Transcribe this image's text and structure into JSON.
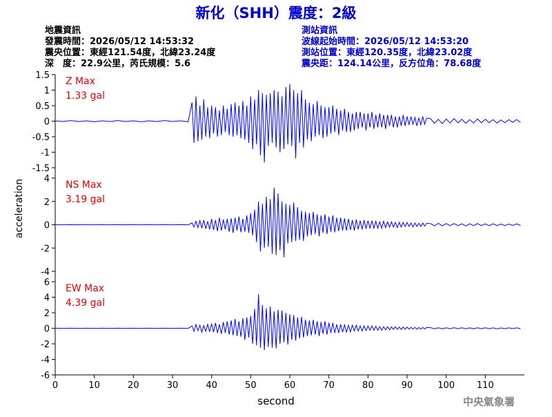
{
  "chart_data": {
    "type": "seismogram",
    "title": "新化（SHH）震度：2級",
    "info_left": [
      "地震資訊",
      "發震時間：2026/05/12 14:53:32",
      "震央位置：東經121.54度，北緯23.24度",
      "深　度：22.9公里，芮氏規模：5.6"
    ],
    "info_right": [
      "測站資訊",
      "波線起始時間：2026/05/12 14:53:20",
      "測站位置：東經120.35度，北緯23.02度",
      "震央距：124.14公里，反方位角：78.68度"
    ],
    "xlabel": "second",
    "ylabel": "acceleration",
    "footer": "中央氣象署",
    "xlim": [
      0,
      120
    ],
    "xticks": [
      0,
      10,
      20,
      30,
      40,
      50,
      60,
      70,
      80,
      90,
      100,
      110
    ],
    "x": [
      0,
      2,
      4,
      6,
      8,
      10,
      12,
      14,
      16,
      18,
      20,
      22,
      24,
      26,
      28,
      30,
      32,
      34,
      35,
      35.5,
      36,
      36.5,
      37,
      37.5,
      38,
      38.5,
      39,
      39.5,
      40,
      40.5,
      41,
      41.5,
      42,
      42.5,
      43,
      43.5,
      44,
      44.5,
      45,
      45.5,
      46,
      46.5,
      47,
      47.5,
      48,
      48.5,
      49,
      49.5,
      50,
      50.5,
      51,
      51.5,
      52,
      52.5,
      53,
      53.5,
      54,
      54.5,
      55,
      55.5,
      56,
      56.5,
      57,
      57.5,
      58,
      58.5,
      59,
      59.5,
      60,
      60.5,
      61,
      61.5,
      62,
      62.5,
      63,
      63.5,
      64,
      64.5,
      65,
      65.5,
      66,
      66.5,
      67,
      67.5,
      68,
      68.5,
      69,
      69.5,
      70,
      70.5,
      71,
      71.5,
      72,
      72.5,
      73,
      73.5,
      74,
      74.5,
      75,
      75.5,
      76,
      76.5,
      77,
      77.5,
      78,
      78.5,
      79,
      79.5,
      80,
      80.5,
      81,
      81.5,
      82,
      82.5,
      83,
      83.5,
      84,
      84.5,
      85,
      85.5,
      86,
      86.5,
      87,
      87.5,
      88,
      88.5,
      89,
      89.5,
      90,
      90.5,
      91,
      91.5,
      92,
      92.5,
      93,
      93.5,
      94,
      94.5,
      95,
      96,
      97,
      98,
      99,
      100,
      101,
      102,
      103,
      104,
      105,
      106,
      107,
      108,
      109,
      110,
      111,
      112,
      113,
      114,
      115,
      116,
      117,
      118,
      119
    ],
    "series": [
      {
        "name": "Z Max",
        "max": 1.33,
        "max_label": "1.33 gal",
        "color": "#0000ff",
        "label_color": "#e00000",
        "ylim": [
          -1.5,
          1.5
        ],
        "yticks": [
          -1.5,
          -1,
          -0.5,
          0,
          0.5,
          1,
          1.5
        ],
        "values": [
          0.01,
          -0.01,
          0.02,
          -0.01,
          0.01,
          -0.02,
          0.01,
          -0.01,
          0.02,
          -0.01,
          0.01,
          -0.02,
          0.01,
          -0.01,
          0.02,
          -0.01,
          0.01,
          -0.02,
          0.6,
          -0.7,
          0.8,
          -0.65,
          0.5,
          -0.6,
          0.7,
          -0.5,
          0.45,
          -0.55,
          0.5,
          -0.4,
          0.45,
          -0.5,
          0.35,
          -0.45,
          0.5,
          -0.35,
          0.4,
          -0.45,
          0.55,
          -0.5,
          0.6,
          -0.45,
          0.5,
          -0.55,
          0.65,
          -0.6,
          0.5,
          -0.7,
          0.8,
          -0.9,
          0.7,
          -0.75,
          1.0,
          -1.1,
          0.9,
          -1.33,
          0.85,
          -0.8,
          0.9,
          -0.7,
          1.0,
          -0.85,
          0.95,
          -1.0,
          0.8,
          -0.9,
          1.1,
          -0.75,
          1.2,
          -0.8,
          1.0,
          -1.2,
          0.9,
          -0.7,
          1.0,
          -0.85,
          0.7,
          -0.6,
          0.6,
          -0.65,
          0.55,
          -0.5,
          0.65,
          -0.45,
          0.5,
          -0.55,
          0.45,
          -0.5,
          0.45,
          -0.4,
          0.5,
          -0.35,
          0.4,
          -0.45,
          0.35,
          -0.3,
          0.4,
          -0.35,
          0.3,
          -0.35,
          0.25,
          -0.3,
          0.3,
          -0.25,
          0.3,
          -0.2,
          0.25,
          -0.3,
          0.25,
          -0.2,
          0.3,
          -0.25,
          0.2,
          -0.2,
          0.25,
          -0.2,
          0.2,
          -0.25,
          0.2,
          -0.15,
          0.2,
          -0.2,
          0.15,
          -0.2,
          0.15,
          -0.15,
          0.2,
          -0.15,
          0.15,
          -0.12,
          0.15,
          -0.1,
          0.12,
          -0.15,
          0.1,
          -0.12,
          0.15,
          -0.1,
          0.1,
          0.08,
          -0.07,
          0.06,
          -0.08,
          0.07,
          -0.06,
          0.08,
          -0.05,
          0.06,
          -0.07,
          0.05,
          -0.06,
          0.07,
          -0.05,
          0.06,
          -0.05,
          0.05,
          -0.06,
          0.04,
          -0.05,
          0.05,
          -0.04,
          0.05,
          -0.04
        ]
      },
      {
        "name": "NS Max",
        "max": 3.19,
        "max_label": "3.19 gal",
        "color": "#0000ff",
        "label_color": "#e00000",
        "ylim": [
          -4,
          4
        ],
        "yticks": [
          -4,
          -2,
          0,
          2,
          4
        ],
        "values": [
          0.01,
          -0.01,
          0.01,
          -0.01,
          0.01,
          -0.01,
          0.01,
          -0.01,
          0.01,
          -0.01,
          0.01,
          -0.01,
          0.01,
          -0.01,
          0.01,
          -0.01,
          0.01,
          -0.01,
          0.15,
          -0.2,
          0.3,
          -0.25,
          0.35,
          -0.3,
          0.4,
          -0.35,
          0.3,
          -0.4,
          0.5,
          -0.45,
          0.4,
          -0.55,
          0.6,
          -0.5,
          0.45,
          -0.4,
          0.5,
          -0.6,
          0.55,
          -0.7,
          0.6,
          -0.5,
          0.7,
          -0.65,
          0.5,
          -0.6,
          0.8,
          -0.7,
          1.0,
          -0.9,
          1.3,
          -1.5,
          2.0,
          -2.3,
          1.8,
          -2.0,
          2.4,
          -1.9,
          2.2,
          -2.5,
          3.19,
          -2.6,
          2.7,
          -2.2,
          2.0,
          -2.8,
          1.8,
          -1.6,
          1.7,
          -1.5,
          1.9,
          -1.4,
          1.5,
          -1.3,
          1.2,
          -1.4,
          1.1,
          -1.0,
          1.0,
          -0.9,
          1.1,
          -0.8,
          0.9,
          -1.0,
          0.8,
          -0.7,
          0.9,
          -0.8,
          0.7,
          -0.6,
          0.8,
          -0.65,
          0.6,
          -0.55,
          0.6,
          -0.5,
          0.55,
          -0.5,
          0.5,
          -0.45,
          0.4,
          -0.5,
          0.45,
          -0.4,
          0.35,
          -0.4,
          0.4,
          -0.35,
          0.35,
          -0.3,
          0.35,
          -0.3,
          0.3,
          -0.3,
          0.25,
          -0.3,
          0.3,
          -0.25,
          0.25,
          -0.2,
          0.25,
          -0.2,
          0.2,
          -0.25,
          0.2,
          -0.2,
          0.2,
          -0.15,
          0.2,
          -0.15,
          0.15,
          -0.2,
          0.15,
          -0.15,
          0.12,
          -0.15,
          0.15,
          -0.12,
          0.12,
          0.1,
          -0.1,
          0.12,
          -0.1,
          0.1,
          -0.08,
          0.1,
          -0.08,
          0.08,
          -0.1,
          0.08,
          -0.08,
          0.1,
          -0.08,
          0.07,
          -0.08,
          0.08,
          -0.07,
          0.06,
          -0.07,
          0.06,
          -0.06,
          0.07,
          -0.06
        ]
      },
      {
        "name": "EW Max",
        "max": 4.39,
        "max_label": "4.39 gal",
        "color": "#0000ff",
        "label_color": "#e00000",
        "ylim": [
          -6,
          6
        ],
        "yticks": [
          -6,
          -4,
          -2,
          0,
          2,
          4,
          6
        ],
        "values": [
          0.01,
          -0.01,
          0.01,
          -0.01,
          0.01,
          -0.01,
          0.01,
          -0.01,
          0.01,
          -0.01,
          0.01,
          -0.01,
          0.01,
          -0.01,
          0.01,
          -0.01,
          0.01,
          -0.01,
          0.3,
          -0.4,
          0.5,
          -0.3,
          0.4,
          -0.5,
          0.35,
          -0.4,
          0.5,
          -0.45,
          0.6,
          -0.5,
          0.7,
          -0.6,
          0.5,
          -0.7,
          0.8,
          -0.6,
          0.9,
          -0.8,
          1.0,
          -0.9,
          1.2,
          -1.0,
          0.9,
          -1.1,
          1.3,
          -1.5,
          1.4,
          -1.2,
          1.6,
          -2.0,
          2.5,
          -2.2,
          4.39,
          -2.5,
          3.0,
          -2.8,
          2.6,
          -2.4,
          2.8,
          -2.5,
          2.2,
          -2.6,
          2.4,
          -2.0,
          2.3,
          -1.8,
          2.0,
          -2.1,
          1.8,
          -1.5,
          1.7,
          -1.6,
          1.4,
          -1.3,
          1.5,
          -1.2,
          1.1,
          -1.0,
          1.0,
          -0.9,
          1.1,
          -0.8,
          0.9,
          -1.0,
          0.8,
          -0.7,
          0.9,
          -0.8,
          0.7,
          -0.6,
          0.7,
          -0.6,
          0.5,
          -0.6,
          0.5,
          -0.5,
          0.45,
          -0.5,
          0.4,
          -0.45,
          0.4,
          -0.35,
          0.4,
          -0.35,
          0.3,
          -0.35,
          0.3,
          -0.3,
          0.3,
          -0.25,
          0.3,
          -0.25,
          0.25,
          -0.25,
          0.2,
          -0.25,
          0.2,
          -0.2,
          0.2,
          -0.2,
          0.18,
          -0.15,
          0.2,
          -0.15,
          0.15,
          -0.15,
          0.15,
          -0.12,
          0.15,
          -0.12,
          0.12,
          -0.1,
          0.12,
          -0.12,
          0.1,
          -0.1,
          0.1,
          -0.1,
          0.1,
          0.08,
          -0.07,
          0.06,
          -0.08,
          0.07,
          -0.06,
          0.08,
          -0.05,
          0.06,
          -0.07,
          0.05,
          -0.06,
          0.07,
          -0.05,
          0.06,
          -0.05,
          0.05,
          -0.06,
          0.04,
          -0.05,
          0.05,
          -0.04,
          0.05,
          -0.04
        ]
      }
    ]
  }
}
